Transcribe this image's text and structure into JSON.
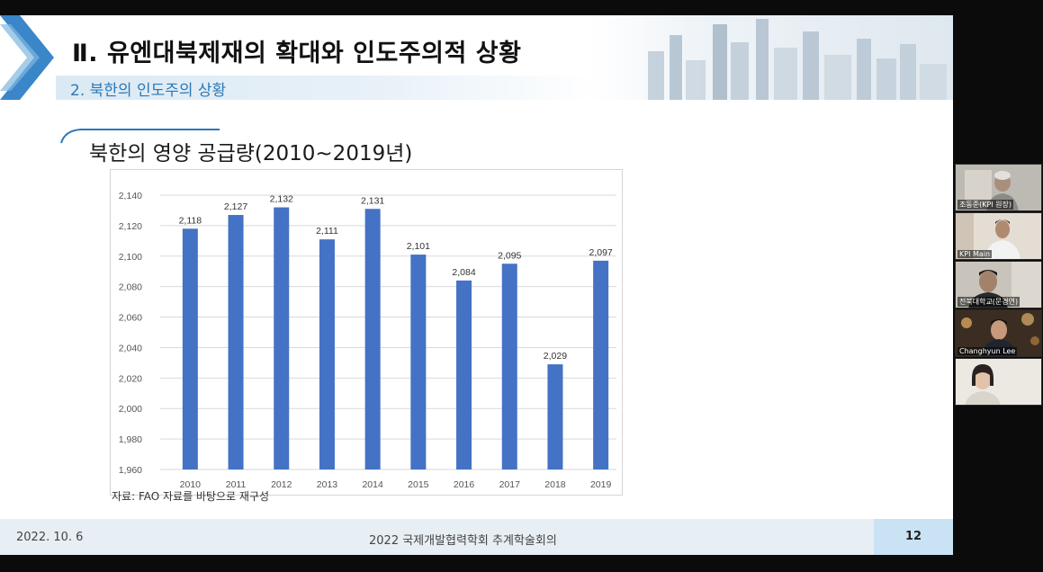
{
  "slide": {
    "main_title": "Ⅱ. 유엔대북제재의 확대와 인도주의적 상황",
    "sub_title": "2. 북한의 인도주의 상황",
    "section_title": "북한의 영양 공급량(2010~2019년)",
    "source_note": "자료: FAO 자료를 바탕으로 재구성",
    "footer": {
      "date": "2022. 10. 6",
      "conference": "2022 국제개발협력학회 추계학술회의",
      "page_number": "12"
    },
    "colors": {
      "bar": "#4472c4",
      "subtitle": "#2d78b5",
      "chevron": "#3a86c8"
    }
  },
  "chart_data": {
    "type": "bar",
    "categories": [
      "2010",
      "2011",
      "2012",
      "2013",
      "2014",
      "2015",
      "2016",
      "2017",
      "2018",
      "2019"
    ],
    "values": [
      2118,
      2127,
      2132,
      2111,
      2131,
      2101,
      2084,
      2095,
      2029,
      2097
    ],
    "value_labels": [
      "2,118",
      "2,127",
      "2,132",
      "2,111",
      "2,131",
      "2,101",
      "2,084",
      "2,095",
      "2,029",
      "2,097"
    ],
    "ylim": [
      1960,
      2140
    ],
    "yticks": [
      1960,
      1980,
      2000,
      2020,
      2040,
      2060,
      2080,
      2100,
      2120,
      2140
    ],
    "ytick_labels": [
      "1,960",
      "1,980",
      "2,000",
      "2,020",
      "2,040",
      "2,060",
      "2,080",
      "2,100",
      "2,120",
      "2,140"
    ],
    "grid": true,
    "legend": "none"
  },
  "participants": [
    {
      "name": "조동준(KPI 원장)",
      "icon": "person-video-icon"
    },
    {
      "name": "KPI Main",
      "icon": "person-video-icon"
    },
    {
      "name": "전북대학교(문경연)",
      "icon": "person-video-icon"
    },
    {
      "name": "Changhyun Lee",
      "icon": "person-video-icon"
    },
    {
      "name": "",
      "icon": "person-video-icon"
    }
  ]
}
